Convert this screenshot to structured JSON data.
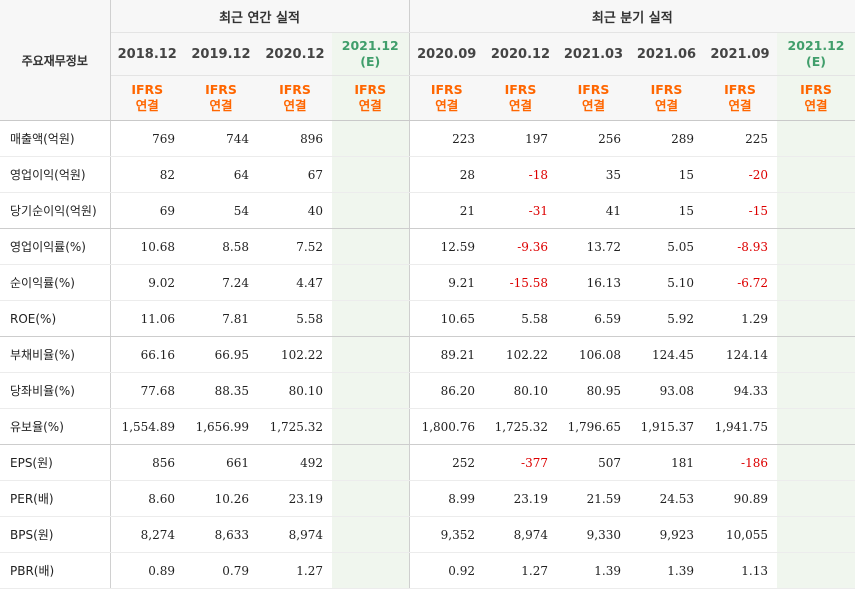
{
  "table": {
    "row_header_title": "주요재무정보",
    "groups": {
      "annual": "최근 연간 실적",
      "quarterly": "최근 분기 실적"
    },
    "periods": [
      {
        "label": "2018.12",
        "est": "",
        "basis": [
          "IFRS",
          "연결"
        ]
      },
      {
        "label": "2019.12",
        "est": "",
        "basis": [
          "IFRS",
          "연결"
        ]
      },
      {
        "label": "2020.12",
        "est": "",
        "basis": [
          "IFRS",
          "연결"
        ]
      },
      {
        "label": "2021.12",
        "est": "(E)",
        "basis": [
          "IFRS",
          "연결"
        ]
      },
      {
        "label": "2020.09",
        "est": "",
        "basis": [
          "IFRS",
          "연결"
        ]
      },
      {
        "label": "2020.12",
        "est": "",
        "basis": [
          "IFRS",
          "연결"
        ]
      },
      {
        "label": "2021.03",
        "est": "",
        "basis": [
          "IFRS",
          "연결"
        ]
      },
      {
        "label": "2021.06",
        "est": "",
        "basis": [
          "IFRS",
          "연결"
        ]
      },
      {
        "label": "2021.09",
        "est": "",
        "basis": [
          "IFRS",
          "연결"
        ]
      },
      {
        "label": "2021.12",
        "est": "(E)",
        "basis": [
          "IFRS",
          "연결"
        ]
      }
    ],
    "rows": [
      {
        "label": "매출액(억원)",
        "values": [
          "769",
          "744",
          "896",
          "",
          "223",
          "197",
          "256",
          "289",
          "225",
          ""
        ]
      },
      {
        "label": "영업이익(억원)",
        "values": [
          "82",
          "64",
          "67",
          "",
          "28",
          "-18",
          "35",
          "15",
          "-20",
          ""
        ]
      },
      {
        "label": "당기순이익(억원)",
        "values": [
          "69",
          "54",
          "40",
          "",
          "21",
          "-31",
          "41",
          "15",
          "-15",
          ""
        ]
      },
      {
        "label": "영업이익률(%)",
        "values": [
          "10.68",
          "8.58",
          "7.52",
          "",
          "12.59",
          "-9.36",
          "13.72",
          "5.05",
          "-8.93",
          ""
        ]
      },
      {
        "label": "순이익률(%)",
        "values": [
          "9.02",
          "7.24",
          "4.47",
          "",
          "9.21",
          "-15.58",
          "16.13",
          "5.10",
          "-6.72",
          ""
        ]
      },
      {
        "label": "ROE(%)",
        "values": [
          "11.06",
          "7.81",
          "5.58",
          "",
          "10.65",
          "5.58",
          "6.59",
          "5.92",
          "1.29",
          ""
        ]
      },
      {
        "label": "부채비율(%)",
        "values": [
          "66.16",
          "66.95",
          "102.22",
          "",
          "89.21",
          "102.22",
          "106.08",
          "124.45",
          "124.14",
          ""
        ]
      },
      {
        "label": "당좌비율(%)",
        "values": [
          "77.68",
          "88.35",
          "80.10",
          "",
          "86.20",
          "80.10",
          "80.95",
          "93.08",
          "94.33",
          ""
        ]
      },
      {
        "label": "유보율(%)",
        "values": [
          "1,554.89",
          "1,656.99",
          "1,725.32",
          "",
          "1,800.76",
          "1,725.32",
          "1,796.65",
          "1,915.37",
          "1,941.75",
          ""
        ]
      },
      {
        "label": "EPS(원)",
        "values": [
          "856",
          "661",
          "492",
          "",
          "252",
          "-377",
          "507",
          "181",
          "-186",
          ""
        ]
      },
      {
        "label": "PER(배)",
        "values": [
          "8.60",
          "10.26",
          "23.19",
          "",
          "8.99",
          "23.19",
          "21.59",
          "24.53",
          "90.89",
          ""
        ]
      },
      {
        "label": "BPS(원)",
        "values": [
          "8,274",
          "8,633",
          "8,974",
          "",
          "9,352",
          "8,974",
          "9,330",
          "9,923",
          "10,055",
          ""
        ]
      },
      {
        "label": "PBR(배)",
        "values": [
          "0.89",
          "0.79",
          "1.27",
          "",
          "0.92",
          "1.27",
          "1.39",
          "1.39",
          "1.13",
          ""
        ]
      }
    ],
    "colors": {
      "negative": "#dd0000",
      "basis": "#ff6600",
      "estimate_text": "#409e6b",
      "estimate_bg": "#f0f6ee",
      "header_bg": "#f7f7f7"
    }
  }
}
